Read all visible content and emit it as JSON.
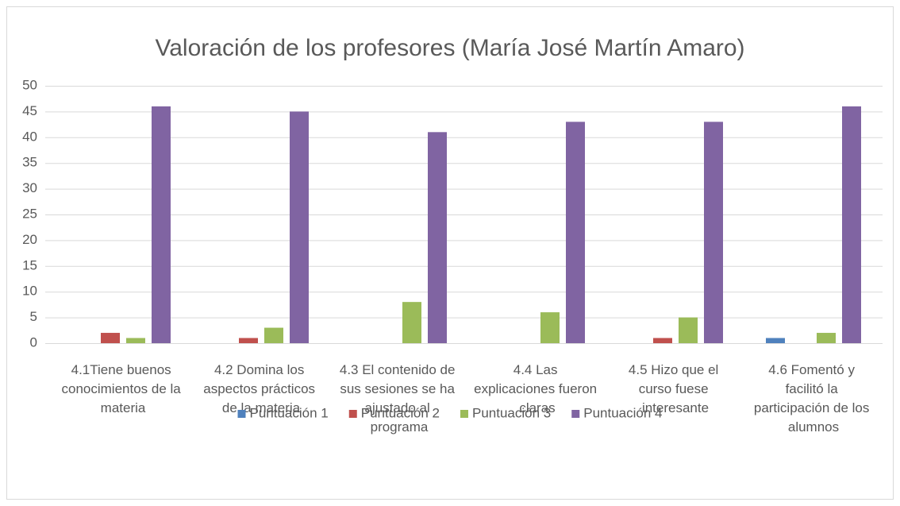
{
  "chart_data": {
    "type": "bar",
    "title": "Valoración de los profesores (María José Martín Amaro)",
    "categories": [
      "4.1Tiene buenos conocimientos de la materia",
      "4.2 Domina los aspectos prácticos de la materia",
      "4.3 El contenido de sus sesiones se ha ajustado al programa",
      "4.4 Las explicaciones fueron claras",
      "4.5 Hizo que el curso fuese interesante",
      "4.6 Fomentó y facilitó la participación de los alumnos"
    ],
    "series": [
      {
        "name": "Puntuación 1",
        "color": "#4f81bd",
        "values": [
          0,
          0,
          0,
          0,
          0,
          1
        ]
      },
      {
        "name": "Puntuación 2",
        "color": "#c0504d",
        "values": [
          2,
          1,
          0,
          0,
          1,
          0
        ]
      },
      {
        "name": "Puntuación 3",
        "color": "#9bbb59",
        "values": [
          1,
          3,
          8,
          6,
          5,
          2
        ]
      },
      {
        "name": "Puntuación 4",
        "color": "#8064a2",
        "values": [
          46,
          45,
          41,
          43,
          43,
          46
        ]
      }
    ],
    "ylim": [
      0,
      50
    ],
    "yticks": [
      0,
      5,
      10,
      15,
      20,
      25,
      30,
      35,
      40,
      45,
      50
    ],
    "grid": true,
    "legend": "bottom"
  }
}
